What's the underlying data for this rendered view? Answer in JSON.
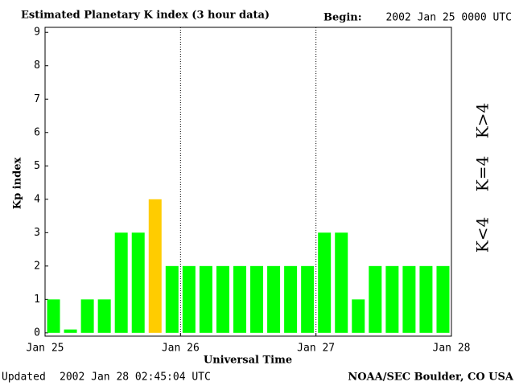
{
  "chart_data": {
    "type": "bar",
    "title": "Estimated Planetary K index (3 hour data)",
    "begin_label": "Begin:",
    "begin": "2002 Jan 25 0000 UTC",
    "ylabel": "Kp index",
    "xlabel": "Universal Time",
    "updated_label": "Updated",
    "updated": "2002 Jan 28 02:45:04 UTC",
    "source": "NOAA/SEC Boulder, CO USA",
    "x": [
      0,
      3,
      6,
      9,
      12,
      15,
      18,
      21,
      24,
      27,
      30,
      33,
      36,
      39,
      42,
      45,
      48,
      51,
      54,
      57,
      60,
      63,
      66,
      69
    ],
    "values": [
      1,
      0.1,
      1,
      1,
      3,
      3,
      4,
      2,
      2,
      2,
      2,
      2,
      2,
      2,
      2,
      2,
      3,
      3,
      1,
      2,
      2,
      2,
      2,
      2
    ],
    "colors": [
      "#00ff00",
      "#00ff00",
      "#00ff00",
      "#00ff00",
      "#00ff00",
      "#00ff00",
      "#ffcc00",
      "#00ff00",
      "#00ff00",
      "#00ff00",
      "#00ff00",
      "#00ff00",
      "#00ff00",
      "#00ff00",
      "#00ff00",
      "#00ff00",
      "#00ff00",
      "#00ff00",
      "#00ff00",
      "#00ff00",
      "#00ff00",
      "#00ff00",
      "#00ff00",
      "#00ff00"
    ],
    "xlim": [
      0,
      72
    ],
    "xticks": [
      {
        "value": 0,
        "label": "Jan 25"
      },
      {
        "value": 24,
        "label": "Jan 26"
      },
      {
        "value": 48,
        "label": "Jan 27"
      },
      {
        "value": 72,
        "label": "Jan 28"
      }
    ],
    "ylim": [
      -0.1,
      9.15
    ],
    "yticks": [
      0,
      1,
      2,
      3,
      4,
      5,
      6,
      7,
      8,
      9
    ],
    "legend": [
      {
        "name": "K>4",
        "color": "#ff2a00"
      },
      {
        "name": "K=4",
        "color": "#ffcc00"
      },
      {
        "name": "K<4",
        "color": "#22dd22"
      }
    ]
  }
}
